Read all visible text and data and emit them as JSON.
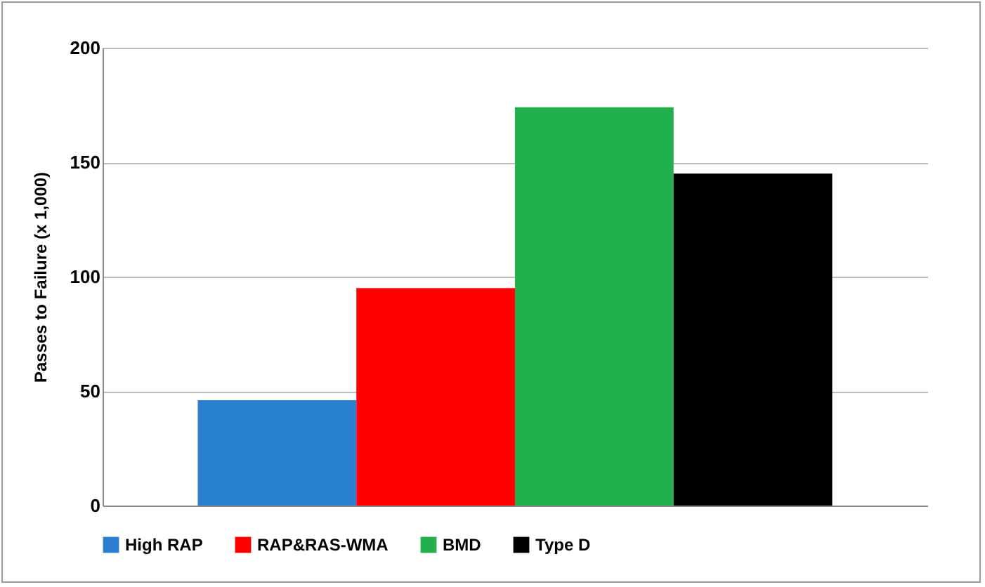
{
  "chart_data": {
    "type": "bar",
    "ylabel": "Passes to Failure (x 1,000)",
    "categories": [
      null
    ],
    "series": [
      {
        "name": "High RAP",
        "color": "#2a7fd0",
        "values": [
          46
        ]
      },
      {
        "name": "RAP&RAS-WMA",
        "color": "#ff0000",
        "values": [
          95
        ]
      },
      {
        "name": "BMD",
        "color": "#22b04c",
        "values": [
          174
        ]
      },
      {
        "name": "Type D",
        "color": "#000000",
        "values": [
          145
        ]
      }
    ],
    "ylim": [
      0,
      200
    ],
    "yticks": [
      0,
      50,
      100,
      150,
      200
    ],
    "grid": "y",
    "legend": "bottom",
    "tick_labels": "y"
  }
}
